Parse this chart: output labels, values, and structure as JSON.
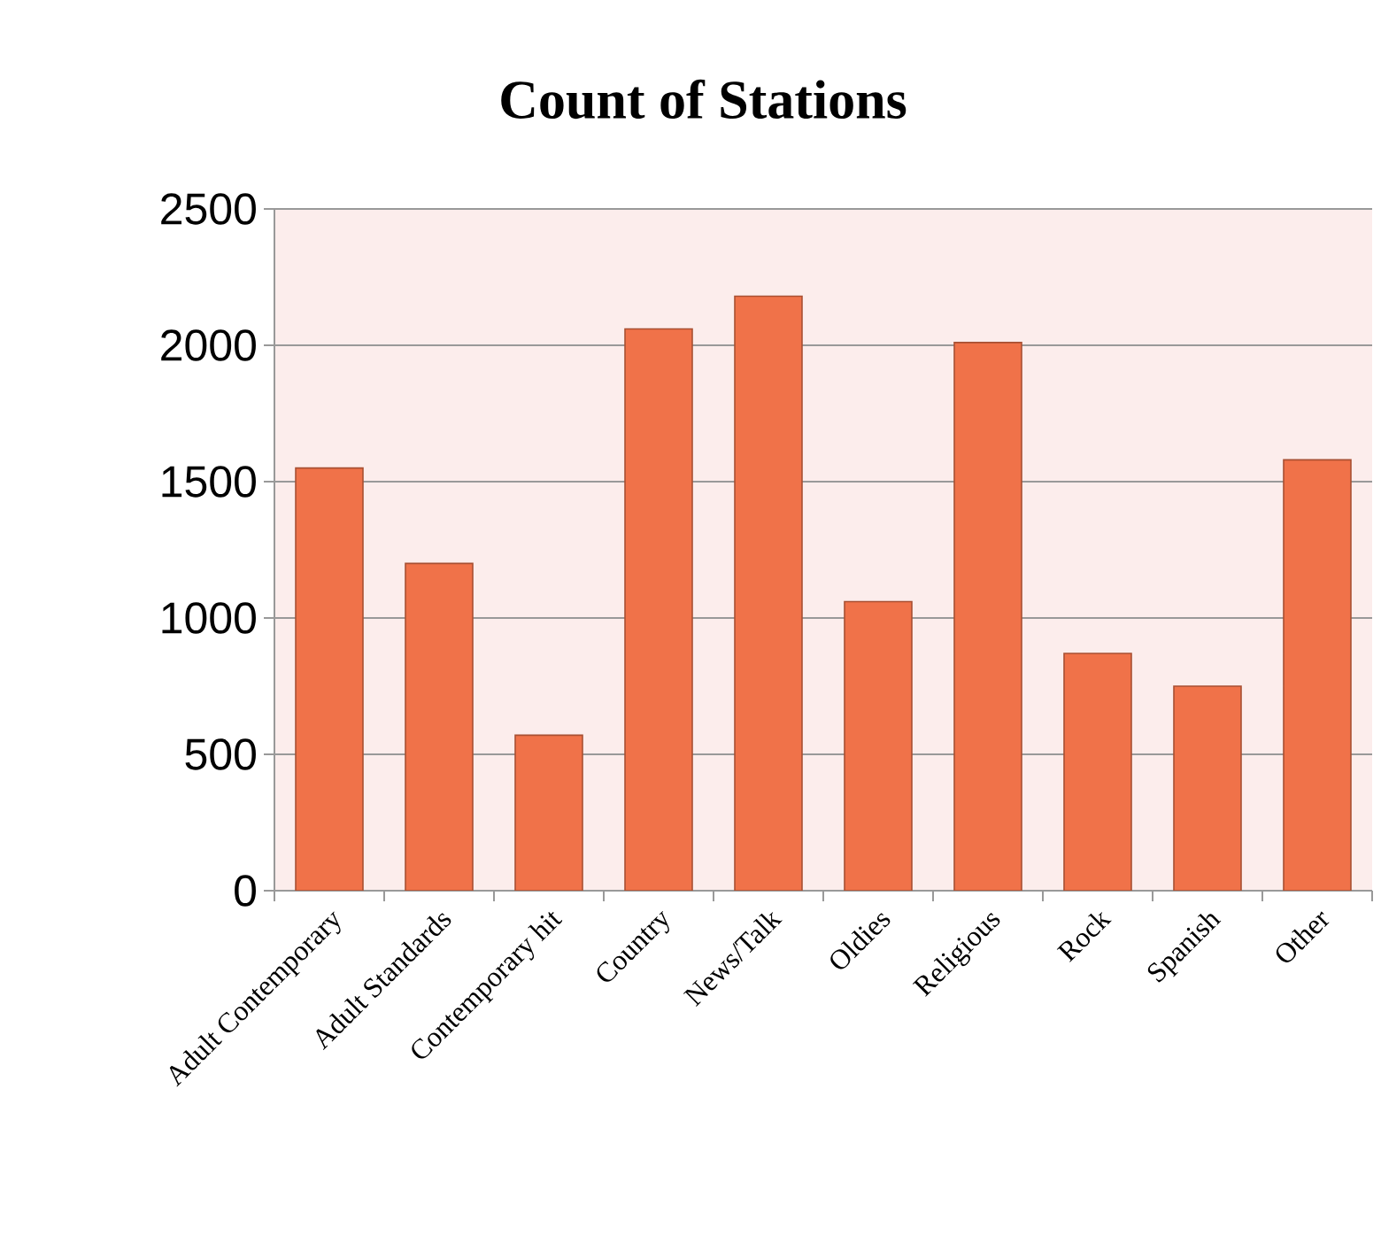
{
  "chart_data": {
    "type": "bar",
    "title": "Count of Stations",
    "categories": [
      "Adult Contemporary",
      "Adult Standards",
      "Contemporary hit",
      "Country",
      "News/Talk",
      "Oldies",
      "Religious",
      "Rock",
      "Spanish",
      "Other"
    ],
    "values": [
      1550,
      1200,
      570,
      2060,
      2180,
      1060,
      2010,
      870,
      750,
      1580
    ],
    "color": "#f07249",
    "ylim": [
      0,
      2500
    ],
    "yticks": [
      0,
      500,
      1000,
      1500,
      2000,
      2500
    ],
    "grid": "y"
  }
}
